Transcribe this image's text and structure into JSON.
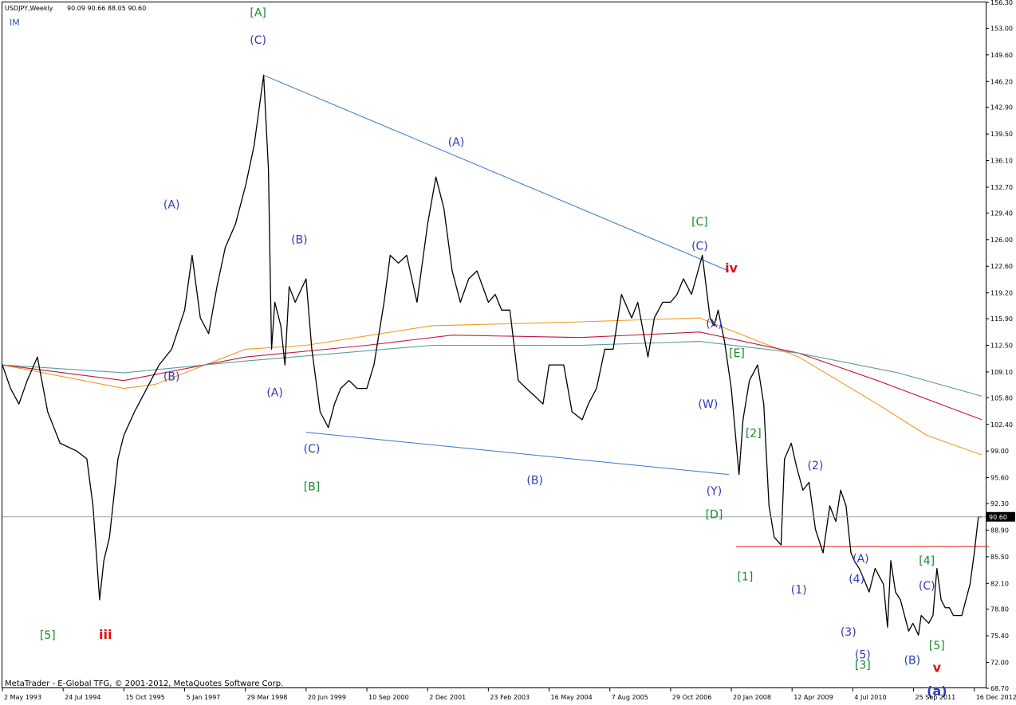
{
  "header": {
    "symbol": "USDJPY,Weekly",
    "ohlc": "90.09 90.66 88.05 90.60",
    "indicator_tag": "IM"
  },
  "footer": {
    "copyright": "MetaTrader - E-Global TFG, © 2001-2012, MetaQuotes Software Corp."
  },
  "colors": {
    "price": "#000000",
    "trendline": "#3c74c8",
    "ma_orange": "#f39a1e",
    "ma_red": "#c0183a",
    "ma_teal": "#5b9aa8",
    "support": "#dd1111",
    "label_blue": "#2f3bb5",
    "label_green": "#158a2a",
    "label_red": "#dd1111",
    "price_line": "#9aa6aa"
  },
  "chart_data": {
    "type": "line",
    "title": "",
    "xlabel": "",
    "ylabel": "",
    "ylim": [
      68.7,
      156.3
    ],
    "xlim": [
      "1993-05-02",
      "2013-03-10"
    ],
    "grid": false,
    "current_price": "90.60",
    "y_ticks": [
      "156.30",
      "153.00",
      "149.60",
      "146.20",
      "142.90",
      "139.50",
      "136.10",
      "132.70",
      "129.40",
      "126.00",
      "122.60",
      "119.20",
      "115.90",
      "112.50",
      "109.10",
      "105.80",
      "102.40",
      "99.00",
      "95.60",
      "92.30",
      "88.90",
      "85.50",
      "82.10",
      "78.80",
      "75.40",
      "72.00",
      "68.70"
    ],
    "x_ticks": [
      {
        "label": "2 May 1993",
        "date": "1993-05-02"
      },
      {
        "label": "24 Jul 1994",
        "date": "1994-07-24"
      },
      {
        "label": "15 Oct 1995",
        "date": "1995-10-15"
      },
      {
        "label": "5 Jan 1997",
        "date": "1997-01-05"
      },
      {
        "label": "29 Mar 1998",
        "date": "1998-03-29"
      },
      {
        "label": "20 Jun 1999",
        "date": "1999-06-20"
      },
      {
        "label": "10 Sep 2000",
        "date": "2000-09-10"
      },
      {
        "label": "2 Dec 2001",
        "date": "2001-12-02"
      },
      {
        "label": "23 Feb 2003",
        "date": "2003-02-23"
      },
      {
        "label": "16 May 2004",
        "date": "2004-05-16"
      },
      {
        "label": "7 Aug 2005",
        "date": "2005-08-07"
      },
      {
        "label": "29 Oct 2006",
        "date": "2006-10-29"
      },
      {
        "label": "20 Jan 2008",
        "date": "2008-01-20"
      },
      {
        "label": "12 Apr 2009",
        "date": "2009-04-12"
      },
      {
        "label": "4 Jul 2010",
        "date": "2010-07-04"
      },
      {
        "label": "25 Sep 2011",
        "date": "2011-09-25"
      },
      {
        "label": "16 Dec 2012",
        "date": "2012-12-16"
      }
    ],
    "series": [
      {
        "key": "price",
        "x": [
          "1993-05-02",
          "1993-07-01",
          "1993-09-01",
          "1993-11-01",
          "1994-01-15",
          "1994-04-01",
          "1994-07-01",
          "1994-11-01",
          "1995-01-15",
          "1995-03-01",
          "1995-04-19",
          "1995-05-20",
          "1995-07-01",
          "1995-09-01",
          "1995-10-15",
          "1996-01-01",
          "1996-04-01",
          "1996-07-01",
          "1996-10-01",
          "1997-01-05",
          "1997-03-01",
          "1997-05-01",
          "1997-07-01",
          "1997-09-01",
          "1997-11-01",
          "1998-01-15",
          "1998-04-01",
          "1998-06-01",
          "1998-08-11",
          "1998-09-15",
          "1998-10-08",
          "1998-11-01",
          "1998-12-15",
          "1999-01-15",
          "1999-02-15",
          "1999-04-01",
          "1999-06-20",
          "1999-08-01",
          "1999-10-01",
          "1999-12-01",
          "2000-01-15",
          "2000-03-01",
          "2000-05-01",
          "2000-07-01",
          "2000-09-10",
          "2000-11-01",
          "2001-01-15",
          "2001-03-01",
          "2001-05-01",
          "2001-07-01",
          "2001-09-15",
          "2001-12-02",
          "2002-02-01",
          "2002-04-01",
          "2002-06-01",
          "2002-08-01",
          "2002-10-01",
          "2002-12-01",
          "2003-02-23",
          "2003-04-15",
          "2003-06-01",
          "2003-08-01",
          "2003-10-01",
          "2003-12-01",
          "2004-02-01",
          "2004-04-01",
          "2004-05-16",
          "2004-07-01",
          "2004-09-01",
          "2004-11-01",
          "2005-01-15",
          "2005-03-01",
          "2005-05-01",
          "2005-07-01",
          "2005-09-01",
          "2005-11-01",
          "2006-01-15",
          "2006-03-01",
          "2006-05-15",
          "2006-07-01",
          "2006-09-01",
          "2006-10-29",
          "2006-12-15",
          "2007-02-01",
          "2007-04-01",
          "2007-06-20",
          "2007-08-16",
          "2007-09-15",
          "2007-10-15",
          "2007-12-01",
          "2008-01-20",
          "2008-03-17",
          "2008-04-15",
          "2008-06-01",
          "2008-08-01",
          "2008-09-15",
          "2008-10-24",
          "2008-12-01",
          "2009-01-21",
          "2009-02-15",
          "2009-04-06",
          "2009-05-15",
          "2009-07-01",
          "2009-08-15",
          "2009-10-01",
          "2009-11-27",
          "2010-01-15",
          "2010-03-01",
          "2010-04-05",
          "2010-05-15",
          "2010-06-20",
          "2010-07-15",
          "2010-08-20",
          "2010-09-15",
          "2010-11-01",
          "2010-12-15",
          "2011-01-15",
          "2011-02-15",
          "2011-03-17",
          "2011-04-10",
          "2011-05-15",
          "2011-06-20",
          "2011-07-20",
          "2011-08-20",
          "2011-09-20",
          "2011-10-31",
          "2011-11-20",
          "2012-01-15",
          "2012-02-15",
          "2012-03-15",
          "2012-04-15",
          "2012-05-15",
          "2012-06-15",
          "2012-07-15",
          "2012-08-15",
          "2012-09-15",
          "2012-10-15",
          "2012-11-15",
          "2012-12-16",
          "2013-01-15",
          "2013-02-01",
          "2013-02-10"
        ],
        "y": [
          110.0,
          107.0,
          105.0,
          108.0,
          111.0,
          104.0,
          100.0,
          99.0,
          98.0,
          92.0,
          80.0,
          85.0,
          88.0,
          98.0,
          101.0,
          104.0,
          107.0,
          110.0,
          112.0,
          117.0,
          124.0,
          116.0,
          114.0,
          120.0,
          125.0,
          128.0,
          133.0,
          138.0,
          147.0,
          135.0,
          112.0,
          118.0,
          115.0,
          110.0,
          120.0,
          118.0,
          121.0,
          112.0,
          104.0,
          102.0,
          105.0,
          107.0,
          108.0,
          107.0,
          107.0,
          110.0,
          118.0,
          124.0,
          123.0,
          124.0,
          118.0,
          128.0,
          134.0,
          130.0,
          122.0,
          118.0,
          121.0,
          122.0,
          118.0,
          119.0,
          117.0,
          117.0,
          108.0,
          107.0,
          106.0,
          105.0,
          110.0,
          110.0,
          110.0,
          104.0,
          103.0,
          105.0,
          107.0,
          112.0,
          112.0,
          119.0,
          116.0,
          118.0,
          111.0,
          116.0,
          118.0,
          118.0,
          119.0,
          121.0,
          119.0,
          124.0,
          116.0,
          115.0,
          117.0,
          113.0,
          107.0,
          96.0,
          103.0,
          108.0,
          110.0,
          105.0,
          92.0,
          88.0,
          87.0,
          98.0,
          100.0,
          97.0,
          94.0,
          95.0,
          89.0,
          86.0,
          92.0,
          90.0,
          94.0,
          92.0,
          86.0,
          85.0,
          84.0,
          83.0,
          81.0,
          84.0,
          83.0,
          82.0,
          76.5,
          85.0,
          81.0,
          80.0,
          78.0,
          76.0,
          77.0,
          75.5,
          78.0,
          77.0,
          78.0,
          84.0,
          80.0,
          79.0,
          79.0,
          78.0,
          78.0,
          78.0,
          80.0,
          82.0,
          86.0,
          90.6,
          90.6,
          90.6
        ]
      },
      {
        "key": "ma_orange",
        "x": [
          "1993-05-02",
          "1995-10-15",
          "1996-06-01",
          "1998-03-29",
          "1999-06-20",
          "2002-01-01",
          "2005-01-01",
          "2007-06-01",
          "2008-01-01",
          "2009-06-01",
          "2011-01-01",
          "2012-01-01",
          "2013-02-10"
        ],
        "y": [
          110.0,
          107.0,
          107.5,
          112.0,
          112.5,
          115.0,
          115.5,
          116.0,
          114.5,
          111.0,
          105.0,
          101.0,
          98.5
        ]
      },
      {
        "key": "ma_red",
        "x": [
          "1993-05-02",
          "1995-10-15",
          "1998-03-29",
          "2000-09-10",
          "2002-06-01",
          "2005-01-01",
          "2007-06-01",
          "2009-06-01",
          "2011-01-01",
          "2013-02-10"
        ],
        "y": [
          110.0,
          108.0,
          111.0,
          112.5,
          113.8,
          113.5,
          114.2,
          111.5,
          108.0,
          103.0
        ]
      },
      {
        "key": "ma_teal",
        "x": [
          "1993-05-02",
          "1995-10-15",
          "1998-03-29",
          "2002-01-01",
          "2005-01-01",
          "2007-06-01",
          "2009-06-01",
          "2011-06-01",
          "2013-02-10"
        ],
        "y": [
          110.0,
          109.0,
          110.5,
          112.5,
          112.5,
          113.0,
          111.5,
          109.0,
          106.0
        ]
      }
    ],
    "trendlines": [
      {
        "key": "upper",
        "x": [
          "1998-08-11",
          "2008-01-01"
        ],
        "y": [
          147.0,
          122.0
        ]
      },
      {
        "key": "lower",
        "x": [
          "1999-06-20",
          "2008-01-01"
        ],
        "y": [
          101.4,
          96.0
        ]
      },
      {
        "key": "support",
        "x": [
          "2008-02-25",
          "2013-04-01"
        ],
        "y": [
          86.8,
          86.8
        ]
      }
    ],
    "annotations": [
      {
        "text": "[A]",
        "x": "1998-07-01",
        "y": 154.5,
        "color": "green"
      },
      {
        "text": "(C)",
        "x": "1998-07-01",
        "y": 151.0,
        "color": "blue"
      },
      {
        "text": "(A)",
        "x": "1996-10-01",
        "y": 130.0,
        "color": "blue"
      },
      {
        "text": "(B)",
        "x": "1996-10-01",
        "y": 108.0,
        "color": "blue"
      },
      {
        "text": "(A)",
        "x": "1998-11-01",
        "y": 106.0,
        "color": "blue"
      },
      {
        "text": "(B)",
        "x": "1999-05-01",
        "y": 125.5,
        "color": "blue"
      },
      {
        "text": "(C)",
        "x": "1999-08-01",
        "y": 98.8,
        "color": "blue"
      },
      {
        "text": "[B]",
        "x": "1999-08-01",
        "y": 94.0,
        "color": "green"
      },
      {
        "text": "(A)",
        "x": "2002-07-01",
        "y": 138.0,
        "color": "blue"
      },
      {
        "text": "(B)",
        "x": "2004-02-01",
        "y": 94.8,
        "color": "blue"
      },
      {
        "text": "[C]",
        "x": "2007-06-01",
        "y": 127.8,
        "color": "green"
      },
      {
        "text": "(C)",
        "x": "2007-06-01",
        "y": 124.7,
        "color": "blue"
      },
      {
        "text": "iv",
        "x": "2008-01-20",
        "y": 121.8,
        "color": "red"
      },
      {
        "text": "(X)",
        "x": "2007-09-15",
        "y": 114.8,
        "color": "blue"
      },
      {
        "text": "[E]",
        "x": "2008-03-01",
        "y": 111.0,
        "color": "green"
      },
      {
        "text": "(W)",
        "x": "2007-08-01",
        "y": 104.5,
        "color": "blue"
      },
      {
        "text": "(Y)",
        "x": "2007-09-15",
        "y": 93.4,
        "color": "blue"
      },
      {
        "text": "[D]",
        "x": "2007-09-15",
        "y": 90.4,
        "color": "green"
      },
      {
        "text": "[2]",
        "x": "2008-07-01",
        "y": 100.8,
        "color": "green"
      },
      {
        "text": "[1]",
        "x": "2008-05-01",
        "y": 82.5,
        "color": "green"
      },
      {
        "text": "(2)",
        "x": "2009-10-01",
        "y": 96.7,
        "color": "blue"
      },
      {
        "text": "(1)",
        "x": "2009-06-01",
        "y": 80.8,
        "color": "blue"
      },
      {
        "text": "(A)",
        "x": "2010-09-01",
        "y": 84.8,
        "color": "blue"
      },
      {
        "text": "(4)",
        "x": "2010-08-01",
        "y": 82.2,
        "color": "blue"
      },
      {
        "text": "(3)",
        "x": "2010-06-01",
        "y": 75.4,
        "color": "blue"
      },
      {
        "text": "(5)",
        "x": "2010-09-15",
        "y": 72.5,
        "color": "blue"
      },
      {
        "text": "[3]",
        "x": "2010-09-15",
        "y": 71.2,
        "color": "green"
      },
      {
        "text": "(B)",
        "x": "2011-09-15",
        "y": 71.8,
        "color": "blue"
      },
      {
        "text": "[4]",
        "x": "2012-01-01",
        "y": 84.5,
        "color": "green"
      },
      {
        "text": "(C)",
        "x": "2012-01-01",
        "y": 81.3,
        "color": "blue"
      },
      {
        "text": "[5]",
        "x": "2012-03-15",
        "y": 73.7,
        "color": "green"
      },
      {
        "text": "v",
        "x": "2012-03-15",
        "y": 70.8,
        "color": "red"
      },
      {
        "text": "(a)",
        "x": "2012-03-15",
        "y": 67.8,
        "color": "blue-bold"
      },
      {
        "text": "[5]",
        "x": "1994-04-01",
        "y": 75.0,
        "color": "green"
      },
      {
        "text": "iii",
        "x": "1995-06-01",
        "y": 75.0,
        "color": "red"
      }
    ]
  }
}
